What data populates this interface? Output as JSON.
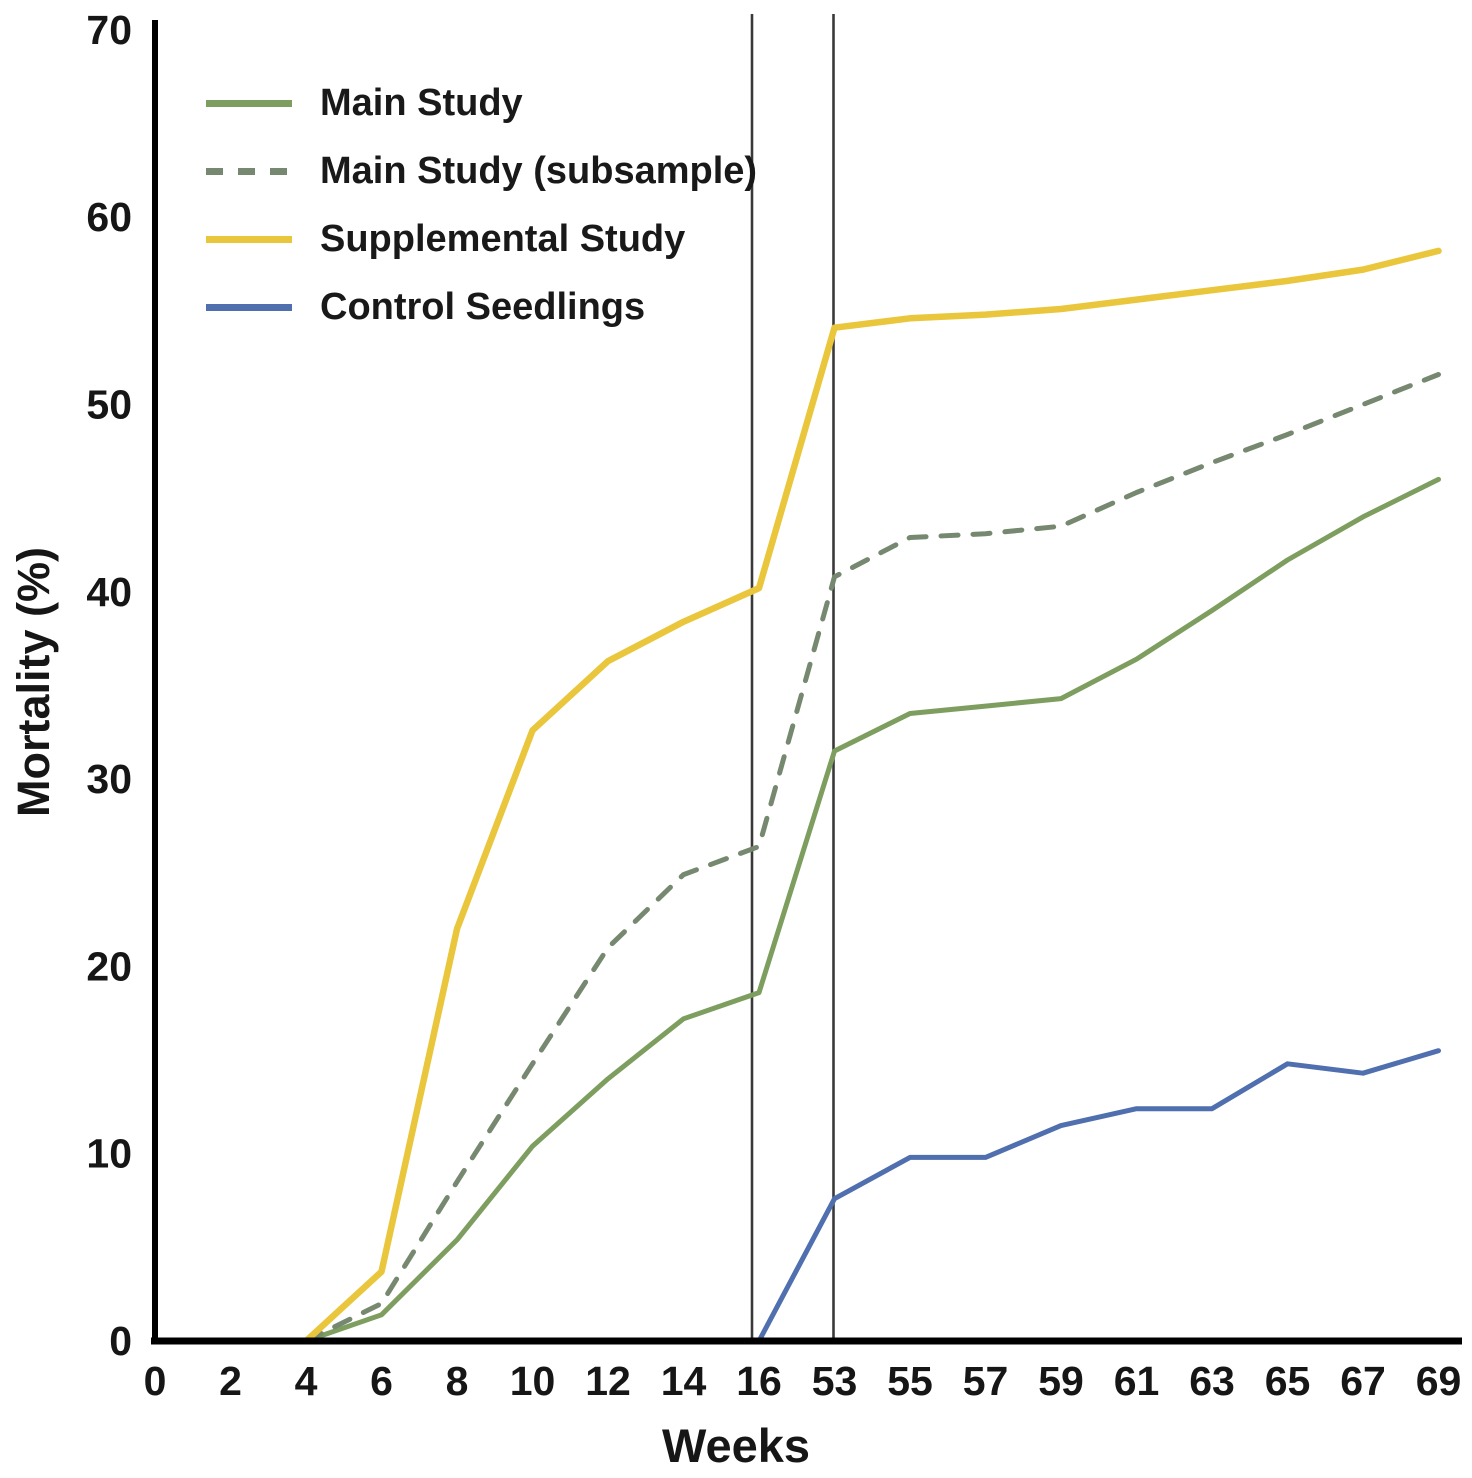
{
  "chart_data": {
    "type": "line",
    "title": "",
    "xlabel": "Weeks",
    "ylabel": "Mortality (%)",
    "ylim": [
      0,
      70
    ],
    "yticks": [
      0,
      10,
      20,
      30,
      40,
      50,
      60,
      70
    ],
    "xtick_weeks": [
      0,
      2,
      4,
      6,
      8,
      10,
      12,
      14,
      16,
      53,
      55,
      57,
      59,
      61,
      63,
      65,
      67,
      69
    ],
    "xticklabels": [
      "0",
      "2",
      "4",
      "6",
      "8",
      "10",
      "12",
      "14",
      "16",
      "53",
      "55",
      "57",
      "59",
      "61",
      "63",
      "65",
      "67",
      "69"
    ],
    "grid": "off",
    "legend_position": "top-left-inside",
    "axis_break": {
      "between_weeks": [
        16,
        53
      ],
      "vline_weeks": [
        16,
        53
      ],
      "vline_color": "#3a3a3a"
    },
    "axis_color": "#000000",
    "text_color": "#161616",
    "series": [
      {
        "name": "Main Study",
        "style": "solid",
        "color": "#7d9e5f",
        "points": [
          [
            4,
            0
          ],
          [
            6,
            1.4
          ],
          [
            8,
            5.4
          ],
          [
            10,
            10.4
          ],
          [
            12,
            14.0
          ],
          [
            14,
            17.2
          ],
          [
            16,
            18.6
          ],
          [
            53,
            31.5
          ],
          [
            55,
            33.5
          ],
          [
            57,
            33.9
          ],
          [
            59,
            34.3
          ],
          [
            61,
            36.4
          ],
          [
            63,
            39.0
          ],
          [
            65,
            41.7
          ],
          [
            67,
            44.0
          ],
          [
            69,
            46.0
          ]
        ]
      },
      {
        "name": "Main Study (subsample)",
        "style": "dashed",
        "color": "#76886f",
        "points": [
          [
            4,
            0
          ],
          [
            6,
            2.0
          ],
          [
            8,
            8.5
          ],
          [
            10,
            14.8
          ],
          [
            12,
            21.0
          ],
          [
            14,
            24.9
          ],
          [
            16,
            26.4
          ],
          [
            53,
            40.8
          ],
          [
            55,
            42.9
          ],
          [
            57,
            43.1
          ],
          [
            59,
            43.5
          ],
          [
            61,
            45.3
          ],
          [
            63,
            46.9
          ],
          [
            65,
            48.4
          ],
          [
            67,
            50.0
          ],
          [
            69,
            51.6
          ]
        ]
      },
      {
        "name": "Supplemental Study",
        "style": "solid",
        "color": "#e9c63b",
        "points": [
          [
            4,
            0
          ],
          [
            6,
            3.7
          ],
          [
            8,
            22.0
          ],
          [
            10,
            32.6
          ],
          [
            12,
            36.3
          ],
          [
            14,
            38.4
          ],
          [
            16,
            40.2
          ],
          [
            53,
            54.1
          ],
          [
            55,
            54.6
          ],
          [
            57,
            54.8
          ],
          [
            59,
            55.1
          ],
          [
            61,
            55.6
          ],
          [
            63,
            56.1
          ],
          [
            65,
            56.6
          ],
          [
            67,
            57.2
          ],
          [
            69,
            58.2
          ]
        ]
      },
      {
        "name": "Control Seedlings",
        "style": "solid",
        "color": "#4f6fae",
        "points": [
          [
            16,
            0
          ],
          [
            53,
            7.6
          ],
          [
            55,
            9.8
          ],
          [
            57,
            9.8
          ],
          [
            59,
            11.5
          ],
          [
            61,
            12.4
          ],
          [
            63,
            12.4
          ],
          [
            65,
            14.8
          ],
          [
            67,
            14.3
          ],
          [
            69,
            15.5
          ]
        ]
      }
    ]
  }
}
